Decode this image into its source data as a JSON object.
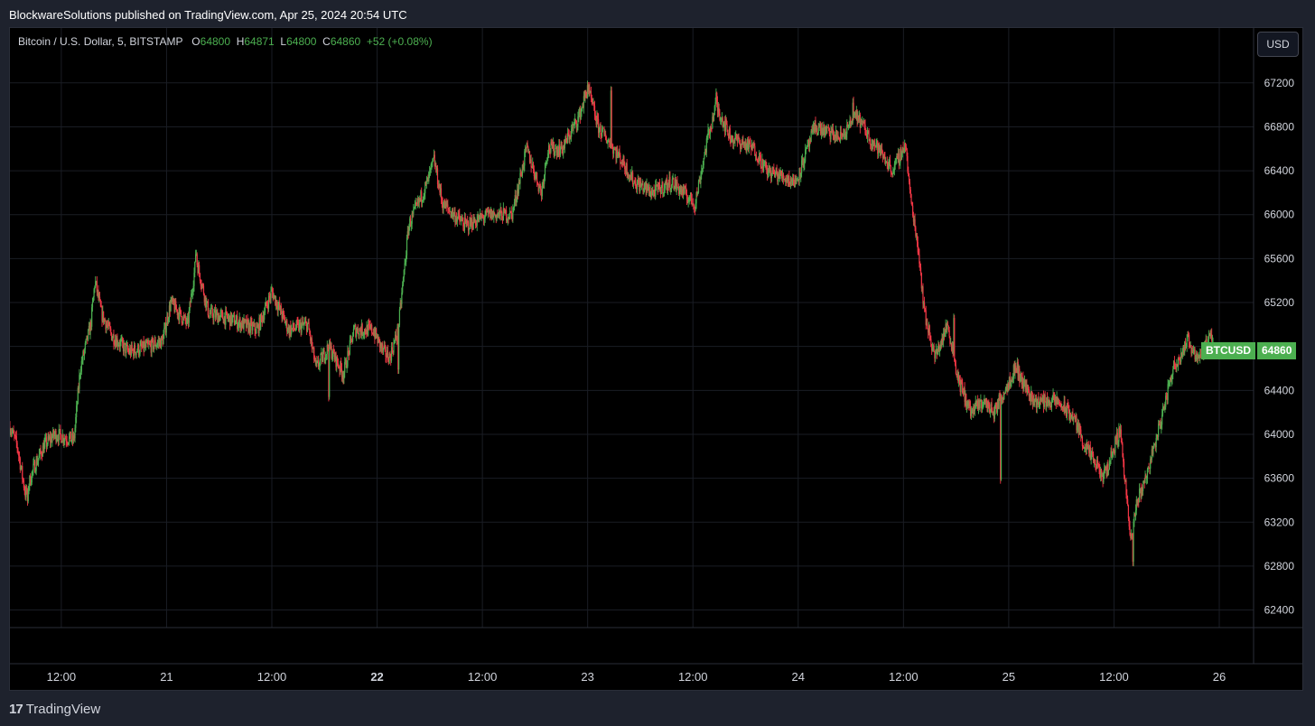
{
  "header": {
    "text": "BlockwareSolutions published on TradingView.com, Apr 25, 2024 20:54 UTC"
  },
  "legend": {
    "title": "Bitcoin / U.S. Dollar, 5, BITSTAMP",
    "open_label": "O",
    "open": "64800",
    "high_label": "H",
    "high": "64871",
    "low_label": "L",
    "low": "64800",
    "close_label": "C",
    "close": "64860",
    "change": "+52 (+0.08%)"
  },
  "currency_button": "USD",
  "price_tag": {
    "symbol": "BTCUSD",
    "value": "64860"
  },
  "footer": {
    "brand": "TradingView",
    "logo_mark": "17"
  },
  "colors": {
    "up": "#4caf50",
    "down": "#f23645",
    "background": "#000000",
    "grid": "#1c1f26",
    "text": "#d1d4dc"
  },
  "chart_data": {
    "type": "candlestick",
    "symbol": "BTCUSD",
    "interval": "5",
    "exchange": "BITSTAMP",
    "ylim": [
      62240,
      67700
    ],
    "y_ticks": [
      62400,
      62800,
      63200,
      63600,
      64000,
      64400,
      64800,
      65200,
      65600,
      66000,
      66400,
      66800,
      67200
    ],
    "x_ticks": [
      {
        "pos": 0.5,
        "label": "12:00",
        "bold": false
      },
      {
        "pos": 1.0,
        "label": "21",
        "bold": false
      },
      {
        "pos": 1.5,
        "label": "12:00",
        "bold": false
      },
      {
        "pos": 2.0,
        "label": "22",
        "bold": true
      },
      {
        "pos": 2.5,
        "label": "12:00",
        "bold": false
      },
      {
        "pos": 3.0,
        "label": "23",
        "bold": false
      },
      {
        "pos": 3.5,
        "label": "12:00",
        "bold": false
      },
      {
        "pos": 4.0,
        "label": "24",
        "bold": false
      },
      {
        "pos": 4.5,
        "label": "12:00",
        "bold": false
      },
      {
        "pos": 5.0,
        "label": "25",
        "bold": false
      },
      {
        "pos": 5.5,
        "label": "12:00",
        "bold": false
      },
      {
        "pos": 6.0,
        "label": "26",
        "bold": false
      }
    ],
    "x_range_days": [
      0.256,
      6.163
    ],
    "last_price": 64860,
    "price_path": [
      [
        0.256,
        64070
      ],
      [
        0.29,
        63900
      ],
      [
        0.33,
        63450
      ],
      [
        0.37,
        63700
      ],
      [
        0.42,
        63900
      ],
      [
        0.47,
        64000
      ],
      [
        0.56,
        63950
      ],
      [
        0.59,
        64600
      ],
      [
        0.64,
        65000
      ],
      [
        0.66,
        65400
      ],
      [
        0.69,
        65100
      ],
      [
        0.74,
        64900
      ],
      [
        0.82,
        64750
      ],
      [
        0.92,
        64800
      ],
      [
        0.98,
        64850
      ],
      [
        1.02,
        65200
      ],
      [
        1.1,
        65000
      ],
      [
        1.14,
        65600
      ],
      [
        1.2,
        65100
      ],
      [
        1.3,
        65050
      ],
      [
        1.43,
        64950
      ],
      [
        1.5,
        65300
      ],
      [
        1.58,
        64950
      ],
      [
        1.67,
        65000
      ],
      [
        1.71,
        64600
      ],
      [
        1.77,
        64800
      ],
      [
        1.84,
        64550
      ],
      [
        1.89,
        64950
      ],
      [
        1.98,
        64950
      ],
      [
        2.03,
        64750
      ],
      [
        2.06,
        64700
      ],
      [
        2.1,
        64950
      ],
      [
        2.15,
        65900
      ],
      [
        2.24,
        66300
      ],
      [
        2.27,
        66500
      ],
      [
        2.31,
        66100
      ],
      [
        2.42,
        65900
      ],
      [
        2.53,
        66000
      ],
      [
        2.64,
        66000
      ],
      [
        2.71,
        66600
      ],
      [
        2.78,
        66200
      ],
      [
        2.81,
        66600
      ],
      [
        2.88,
        66600
      ],
      [
        2.96,
        66900
      ],
      [
        3.0,
        67150
      ],
      [
        3.05,
        66800
      ],
      [
        3.16,
        66500
      ],
      [
        3.22,
        66300
      ],
      [
        3.31,
        66200
      ],
      [
        3.4,
        66300
      ],
      [
        3.51,
        66100
      ],
      [
        3.57,
        66700
      ],
      [
        3.61,
        67000
      ],
      [
        3.68,
        66700
      ],
      [
        3.79,
        66600
      ],
      [
        3.85,
        66400
      ],
      [
        3.99,
        66300
      ],
      [
        4.08,
        66800
      ],
      [
        4.2,
        66700
      ],
      [
        4.28,
        66900
      ],
      [
        4.34,
        66700
      ],
      [
        4.38,
        66600
      ],
      [
        4.45,
        66400
      ],
      [
        4.51,
        66650
      ],
      [
        4.53,
        66200
      ],
      [
        4.57,
        65700
      ],
      [
        4.6,
        65100
      ],
      [
        4.65,
        64700
      ],
      [
        4.71,
        65000
      ],
      [
        4.76,
        64500
      ],
      [
        4.82,
        64200
      ],
      [
        4.88,
        64300
      ],
      [
        4.93,
        64200
      ],
      [
        5.03,
        64600
      ],
      [
        5.12,
        64300
      ],
      [
        5.23,
        64300
      ],
      [
        5.31,
        64150
      ],
      [
        5.36,
        63900
      ],
      [
        5.45,
        63600
      ],
      [
        5.53,
        64050
      ],
      [
        5.58,
        63000
      ],
      [
        5.61,
        63400
      ],
      [
        5.65,
        63600
      ],
      [
        5.72,
        64100
      ],
      [
        5.78,
        64600
      ],
      [
        5.85,
        64850
      ],
      [
        5.9,
        64700
      ],
      [
        5.97,
        64900
      ]
    ],
    "extremes": [
      [
        0.34,
        63350,
        "low"
      ],
      [
        1.14,
        65680,
        "high"
      ],
      [
        1.77,
        64300,
        "low"
      ],
      [
        2.1,
        64550,
        "low"
      ],
      [
        3.0,
        67220,
        "high"
      ],
      [
        3.11,
        67170,
        "high"
      ],
      [
        3.61,
        67150,
        "high"
      ],
      [
        4.26,
        67060,
        "high"
      ],
      [
        4.74,
        65100,
        "high"
      ],
      [
        4.96,
        63550,
        "low"
      ],
      [
        5.04,
        64700,
        "high"
      ],
      [
        5.59,
        62800,
        "low"
      ],
      [
        5.97,
        64960,
        "high"
      ]
    ],
    "grid": true,
    "legend_position": "top-left"
  }
}
